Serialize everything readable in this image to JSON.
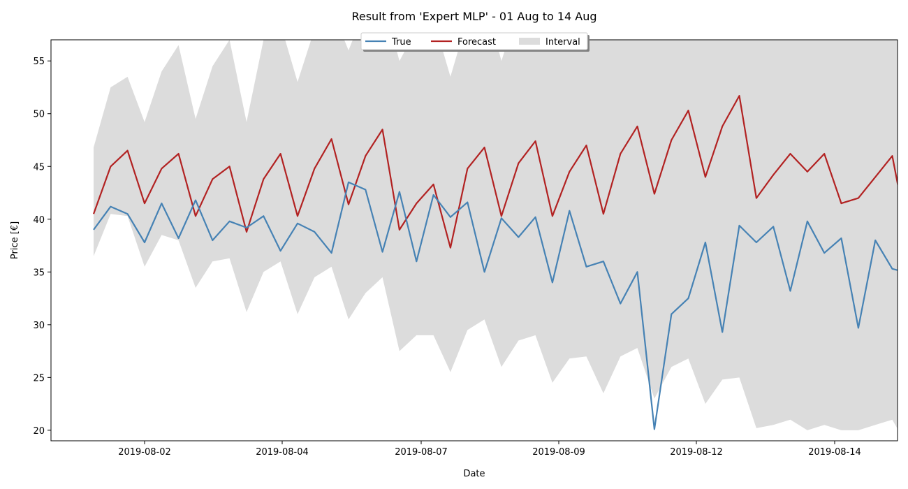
{
  "chart_data": {
    "type": "line",
    "title": "Result from 'Expert MLP' - 01 Aug to 14 Aug",
    "xlabel": "Date",
    "ylabel": "Price [€]",
    "x_ticks": [
      "2019-08-02",
      "2019-08-04",
      "2019-08-07",
      "2019-08-09",
      "2019-08-12",
      "2019-08-14"
    ],
    "y_ticks": [
      20,
      25,
      30,
      35,
      40,
      45,
      50,
      55
    ],
    "ylim": [
      19,
      57
    ],
    "grid": false,
    "legend": {
      "placement": "top-center",
      "entries": [
        "True",
        "Forecast",
        "Interval"
      ]
    },
    "colors": {
      "true": "#4682b4",
      "forecast": "#b22222",
      "interval": "#dcdcdc"
    },
    "x_units": "days",
    "series": [
      {
        "name": "True",
        "type": "line",
        "x": [
          0.625,
          0.917,
          1.208,
          1.5,
          1.792,
          2.083,
          2.375,
          2.667,
          2.958,
          3.25,
          3.542,
          3.833,
          4.125,
          4.417,
          4.708,
          5.0,
          5.292,
          5.583,
          5.875,
          6.167,
          6.458,
          6.75,
          7.042,
          7.333,
          7.625,
          7.917,
          8.208,
          8.5,
          8.792,
          9.083,
          9.375,
          9.667,
          9.958,
          10.25,
          10.542,
          10.833,
          11.125,
          11.417,
          11.708,
          12.0,
          12.292,
          12.583,
          12.875,
          13.167,
          13.458,
          13.75,
          14.042,
          14.333,
          14.542
        ],
        "values": [
          39.0,
          41.2,
          40.5,
          37.8,
          41.5,
          38.2,
          41.8,
          38.0,
          39.8,
          39.2,
          40.3,
          37.0,
          39.6,
          38.8,
          36.8,
          43.5,
          42.8,
          36.9,
          42.6,
          36.0,
          42.3,
          40.2,
          41.6,
          35.0,
          40.1,
          38.3,
          40.2,
          34.0,
          40.8,
          35.5,
          36.0,
          32.0,
          35.0,
          20.1,
          31.0,
          32.5,
          37.8,
          29.3,
          39.4,
          37.8,
          39.3,
          33.2,
          39.8,
          36.8,
          38.2,
          29.7,
          38.0,
          35.3,
          35.0
        ]
      },
      {
        "name": "Forecast",
        "type": "line",
        "x": [
          0.625,
          0.917,
          1.208,
          1.5,
          1.792,
          2.083,
          2.375,
          2.667,
          2.958,
          3.25,
          3.542,
          3.833,
          4.125,
          4.417,
          4.708,
          5.0,
          5.292,
          5.583,
          5.875,
          6.167,
          6.458,
          6.75,
          7.042,
          7.333,
          7.625,
          7.917,
          8.208,
          8.5,
          8.792,
          9.083,
          9.375,
          9.667,
          9.958,
          10.25,
          10.542,
          10.833,
          11.125,
          11.417,
          11.708,
          12.0,
          12.292,
          12.583,
          12.875,
          13.167,
          13.458,
          13.75,
          14.042,
          14.333,
          14.542
        ],
        "values": [
          40.5,
          45.0,
          46.5,
          41.5,
          44.8,
          46.2,
          40.3,
          43.8,
          45.0,
          38.8,
          43.8,
          46.2,
          40.3,
          44.8,
          47.6,
          41.4,
          46.0,
          48.5,
          39.0,
          41.5,
          43.3,
          37.3,
          44.8,
          46.8,
          40.3,
          45.3,
          47.4,
          40.3,
          44.5,
          47.0,
          40.5,
          46.2,
          48.8,
          42.4,
          47.5,
          50.3,
          44.0,
          48.8,
          51.7,
          42.0,
          44.2,
          46.2,
          44.5,
          46.2,
          41.5,
          42.0,
          44.0,
          46.0,
          40.0
        ]
      },
      {
        "name": "Interval",
        "type": "area",
        "x": [
          0.625,
          0.917,
          1.208,
          1.5,
          1.792,
          2.083,
          2.375,
          2.667,
          2.958,
          3.25,
          3.542,
          3.833,
          4.125,
          4.417,
          4.708,
          5.0,
          5.292,
          5.583,
          5.875,
          6.167,
          6.458,
          6.75,
          7.042,
          7.333,
          7.625,
          7.917,
          8.208,
          8.5,
          8.792,
          9.083,
          9.375,
          9.667,
          9.958,
          10.25,
          10.542,
          10.833,
          11.125,
          11.417,
          11.708,
          12.0,
          12.292,
          12.583,
          12.875,
          13.167,
          13.458,
          13.75,
          14.042,
          14.333,
          14.542
        ],
        "upper": [
          46.8,
          52.5,
          53.5,
          49.2,
          54.0,
          56.5,
          49.5,
          54.5,
          57.0,
          49.2,
          57.0,
          58.5,
          53.0,
          58.0,
          60.0,
          56.0,
          60.0,
          61.0,
          55.0,
          58.0,
          59.0,
          53.5,
          59.0,
          61.0,
          55.0,
          60.0,
          62.0,
          56.0,
          60.0,
          62.0,
          57.0,
          62.0,
          63.0,
          58.0,
          63.0,
          64.0,
          59.0,
          63.5,
          65.0,
          57.0,
          58.0,
          59.0,
          58.0,
          59.0,
          57.0,
          57.0,
          57.0,
          57.0,
          57.0
        ],
        "lower": [
          36.5,
          40.5,
          40.3,
          35.5,
          38.5,
          38.0,
          33.5,
          36.0,
          36.3,
          31.2,
          35.0,
          36.0,
          31.0,
          34.5,
          35.5,
          30.5,
          33.0,
          34.5,
          27.5,
          29.0,
          29.0,
          25.5,
          29.5,
          30.5,
          26.0,
          28.5,
          29.0,
          24.5,
          26.8,
          27.0,
          23.5,
          27.0,
          27.8,
          23.0,
          26.0,
          26.8,
          22.5,
          24.8,
          25.0,
          20.2,
          20.5,
          21.0,
          20.0,
          20.5,
          20.0,
          20.0,
          20.5,
          21.0,
          19.0
        ]
      }
    ]
  }
}
